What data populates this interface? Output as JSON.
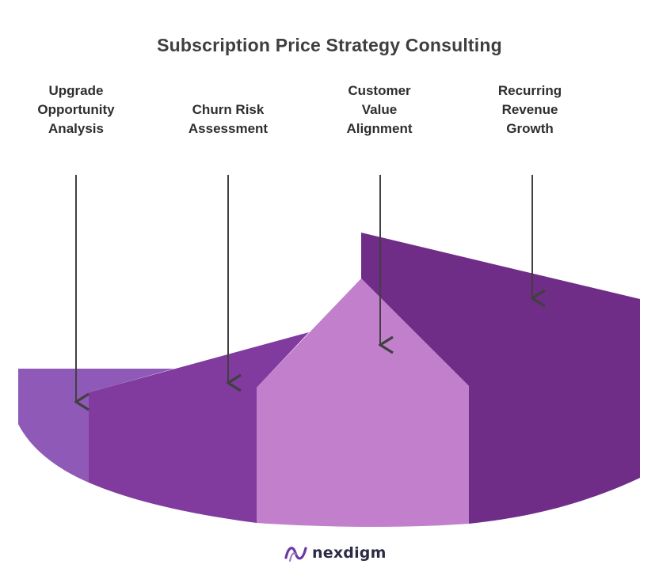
{
  "title": "Subscription Price Strategy Consulting",
  "stages": [
    {
      "lines": [
        "Upgrade",
        "Opportunity",
        "Analysis"
      ],
      "color": "#8f5ab7"
    },
    {
      "lines": [
        "Churn Risk",
        "Assessment"
      ],
      "color": "#813a9e"
    },
    {
      "lines": [
        "Customer",
        "Value",
        "Alignment"
      ],
      "color": "#c27fcc"
    },
    {
      "lines": [
        "Recurring",
        "Revenue",
        "Growth"
      ],
      "color": "#6f2d88"
    }
  ],
  "brand": {
    "name": "nexdigm",
    "icon": "nexdigm-logo-icon",
    "color": "#6a3aa0"
  }
}
